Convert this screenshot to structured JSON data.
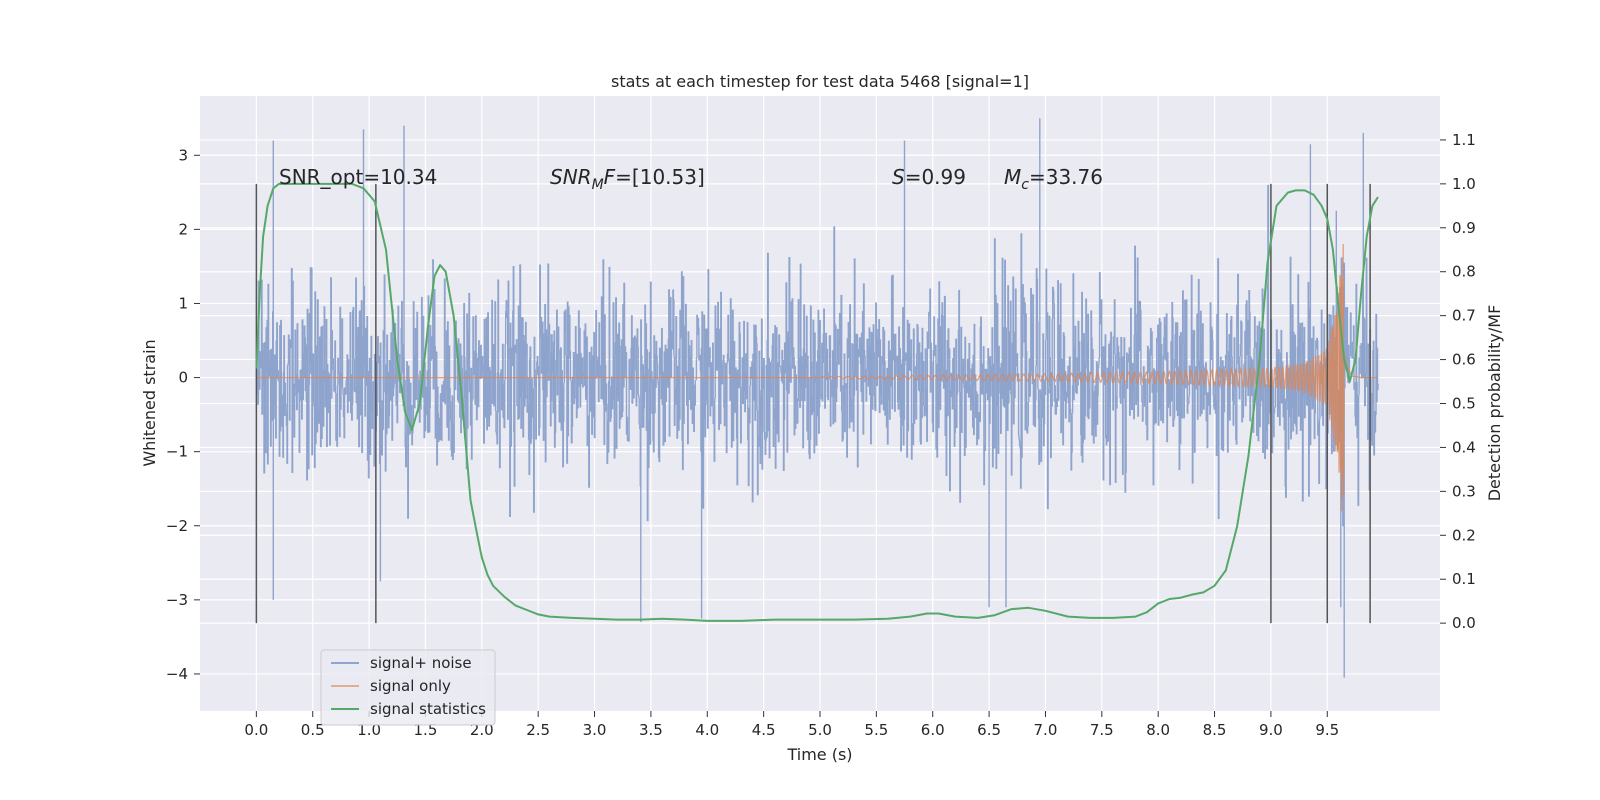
{
  "chart_data": {
    "type": "line",
    "title": "stats at each timestep for test data 5468 [signal=1]",
    "xlabel": "Time (s)",
    "ylabel_left": "Whitened strain",
    "ylabel_right": "Detection probability/MF",
    "xlim": [
      -0.5,
      10.5
    ],
    "ylim_left": [
      -4.5,
      3.8
    ],
    "ylim_right": [
      -0.2,
      1.2
    ],
    "x_ticks": [
      "0.0",
      "0.5",
      "1.0",
      "1.5",
      "2.0",
      "2.5",
      "3.0",
      "3.5",
      "4.0",
      "4.5",
      "5.0",
      "5.5",
      "6.0",
      "6.5",
      "7.0",
      "7.5",
      "8.0",
      "8.5",
      "9.0",
      "9.5"
    ],
    "y_left_ticks": [
      "3",
      "2",
      "1",
      "0",
      "−1",
      "−2",
      "−3",
      "−4"
    ],
    "y_right_ticks": [
      "1.1",
      "1.0",
      "0.9",
      "0.8",
      "0.7",
      "0.6",
      "0.5",
      "0.4",
      "0.3",
      "0.2",
      "0.1",
      "0.0"
    ],
    "grid": true,
    "legend_position": "lower-left",
    "annotations": {
      "snr_opt": "SNR_opt=10.34",
      "snr_mf_base": "SNR",
      "snr_mf_sub": "M",
      "snr_mf_rest": "F=[10.53]",
      "s_label": "S",
      "s_value": "=0.99",
      "mc_label": "M",
      "mc_sub": "c",
      "mc_value": "=33.76"
    },
    "vertical_markers": [
      0.0,
      1.06,
      9.0,
      9.5,
      9.88
    ],
    "series": [
      {
        "name": "signal+ noise",
        "color": "#8fa4cd",
        "axis": "left",
        "style": "noise band",
        "x_range": [
          0.0,
          9.95
        ],
        "typical_range": [
          -1.5,
          1.5
        ],
        "extremes": [
          [
            0.15,
            3.2
          ],
          [
            0.95,
            3.35
          ],
          [
            1.31,
            3.4
          ],
          [
            1.1,
            -2.75
          ],
          [
            0.15,
            -3.0
          ],
          [
            3.41,
            -3.3
          ],
          [
            3.95,
            -3.25
          ],
          [
            5.75,
            3.2
          ],
          [
            6.5,
            -3.1
          ],
          [
            6.65,
            -3.1
          ],
          [
            6.95,
            3.5
          ],
          [
            9.35,
            3.15
          ],
          [
            9.58,
            2.25
          ],
          [
            9.65,
            -4.05
          ],
          [
            9.82,
            3.3
          ],
          [
            9.62,
            -3.1
          ]
        ]
      },
      {
        "name": "signal only",
        "color": "#dd8452",
        "axis": "left",
        "style": "chirp",
        "x_range": [
          0.0,
          9.95
        ],
        "chirp": {
          "t_merger": 9.65,
          "amplitude_points": [
            [
              5.0,
              0.01
            ],
            [
              6.0,
              0.03
            ],
            [
              7.0,
              0.05
            ],
            [
              8.0,
              0.08
            ],
            [
              9.0,
              0.13
            ],
            [
              9.3,
              0.2
            ],
            [
              9.5,
              0.4
            ],
            [
              9.6,
              1.2
            ],
            [
              9.64,
              2.1
            ],
            [
              9.67,
              0.8
            ],
            [
              9.72,
              0.1
            ],
            [
              9.8,
              0.0
            ]
          ]
        }
      },
      {
        "name": "signal statistics",
        "color": "#55a868",
        "axis": "right",
        "style": "line",
        "x": [
          0.0,
          0.03,
          0.06,
          0.1,
          0.15,
          0.2,
          0.3,
          0.5,
          0.7,
          0.85,
          0.95,
          1.05,
          1.15,
          1.25,
          1.32,
          1.38,
          1.45,
          1.52,
          1.58,
          1.63,
          1.68,
          1.75,
          1.82,
          1.9,
          1.96,
          2.0,
          2.05,
          2.1,
          2.2,
          2.3,
          2.4,
          2.5,
          2.6,
          2.8,
          3.0,
          3.2,
          3.4,
          3.6,
          3.8,
          4.0,
          4.3,
          4.6,
          5.0,
          5.3,
          5.6,
          5.8,
          5.95,
          6.05,
          6.2,
          6.4,
          6.55,
          6.7,
          6.85,
          7.0,
          7.2,
          7.4,
          7.6,
          7.8,
          7.9,
          8.0,
          8.1,
          8.2,
          8.3,
          8.4,
          8.5,
          8.6,
          8.7,
          8.8,
          8.9,
          8.97,
          9.05,
          9.15,
          9.22,
          9.3,
          9.38,
          9.45,
          9.5,
          9.55,
          9.6,
          9.65,
          9.7,
          9.75,
          9.8,
          9.85,
          9.9,
          9.95
        ],
        "y": [
          0.58,
          0.75,
          0.88,
          0.95,
          0.99,
          1.0,
          1.0,
          1.0,
          1.0,
          1.0,
          0.99,
          0.96,
          0.85,
          0.6,
          0.48,
          0.44,
          0.5,
          0.67,
          0.79,
          0.815,
          0.8,
          0.7,
          0.52,
          0.28,
          0.2,
          0.15,
          0.11,
          0.085,
          0.06,
          0.04,
          0.03,
          0.02,
          0.015,
          0.012,
          0.01,
          0.008,
          0.008,
          0.01,
          0.008,
          0.005,
          0.005,
          0.008,
          0.008,
          0.008,
          0.01,
          0.015,
          0.022,
          0.022,
          0.015,
          0.012,
          0.018,
          0.032,
          0.035,
          0.028,
          0.015,
          0.012,
          0.012,
          0.015,
          0.025,
          0.045,
          0.055,
          0.058,
          0.065,
          0.07,
          0.085,
          0.12,
          0.22,
          0.38,
          0.6,
          0.82,
          0.95,
          0.98,
          0.985,
          0.985,
          0.975,
          0.95,
          0.92,
          0.85,
          0.72,
          0.6,
          0.55,
          0.6,
          0.75,
          0.88,
          0.95,
          0.97
        ]
      }
    ]
  }
}
